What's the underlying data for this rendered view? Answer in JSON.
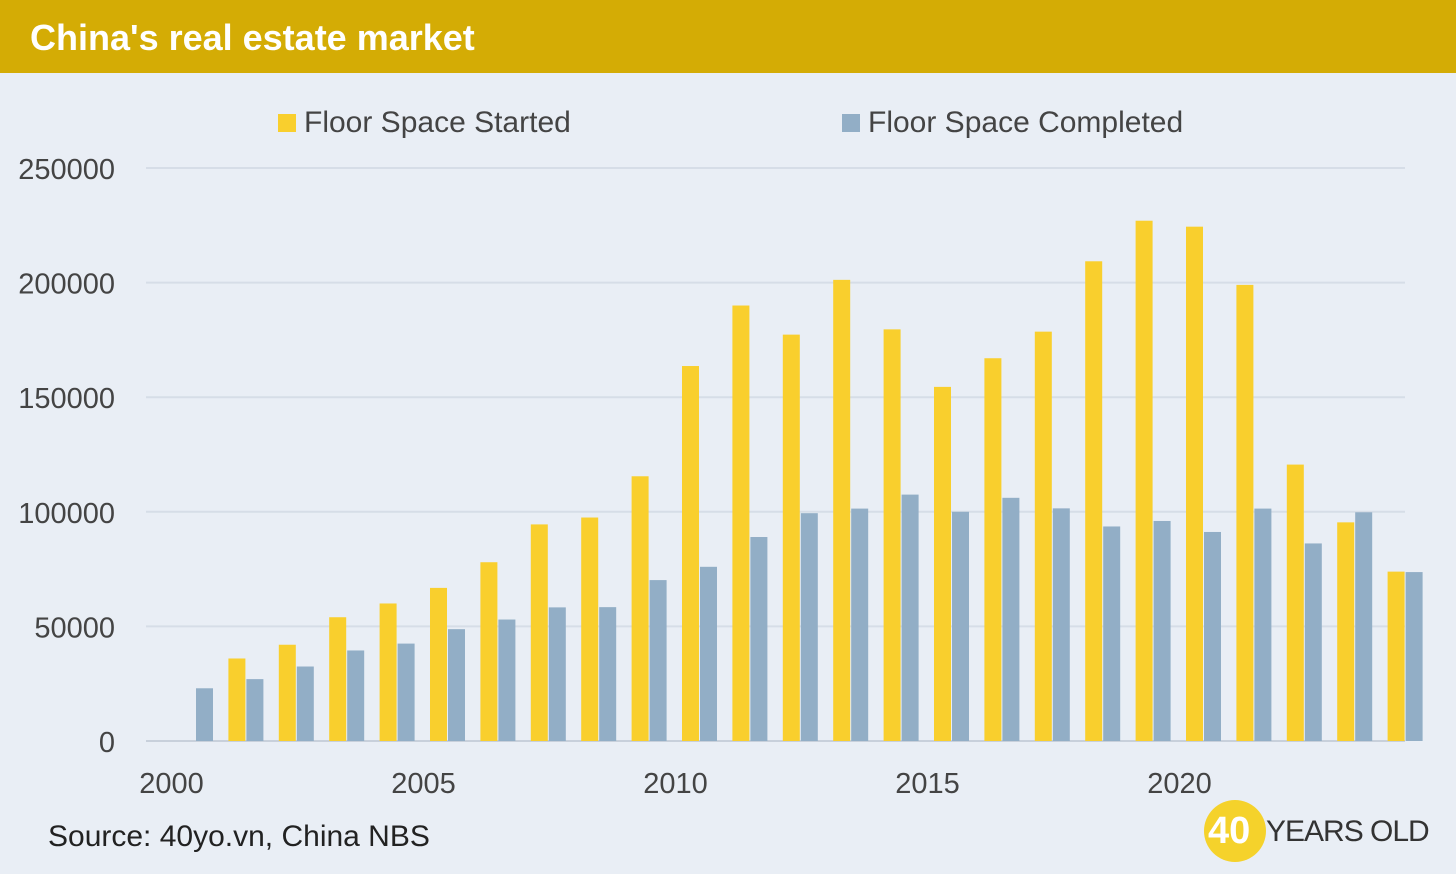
{
  "header": {
    "title": "China's real estate market"
  },
  "source": "Source: 40yo.vn, China NBS",
  "brand": {
    "number": "40",
    "text": "YEARS OLD"
  },
  "colors": {
    "header_bg": "#d4ac05",
    "background": "#e9eef5",
    "started": "#f9cf2d",
    "completed": "#92aec6",
    "gridline": "#d6dde7"
  },
  "chart_data": {
    "type": "bar",
    "title": "China's real estate market",
    "xlabel": "",
    "ylabel": "",
    "ylim": [
      0,
      250000
    ],
    "yticks": [
      "0",
      "50000",
      "100000",
      "150000",
      "200000",
      "250000"
    ],
    "xtick_labels": [
      "2000",
      "2005",
      "2010",
      "2015",
      "2020"
    ],
    "legend_position": "top",
    "grid": true,
    "categories": [
      "2000",
      "2001",
      "2002",
      "2003",
      "2004",
      "2005",
      "2006",
      "2007",
      "2008",
      "2009",
      "2010",
      "2011",
      "2012",
      "2013",
      "2014",
      "2015",
      "2016",
      "2017",
      "2018",
      "2019",
      "2020",
      "2021",
      "2022",
      "2023",
      "2024"
    ],
    "series": [
      {
        "name": "Floor Space Started",
        "color": "#f9cf2d",
        "values": [
          null,
          36000,
          42000,
          54000,
          60000,
          66800,
          78000,
          94500,
          97500,
          115500,
          163600,
          190000,
          177300,
          201200,
          179600,
          154500,
          167000,
          178600,
          209300,
          227000,
          224400,
          199000,
          120600,
          95400,
          73900
        ]
      },
      {
        "name": "Floor Space Completed",
        "color": "#92aec6",
        "values": [
          23000,
          27000,
          32500,
          39500,
          42500,
          48800,
          53000,
          58300,
          58400,
          70200,
          76000,
          89000,
          99400,
          101400,
          107500,
          100000,
          106100,
          101500,
          93600,
          96000,
          91200,
          101400,
          86200,
          99800,
          73700
        ]
      }
    ]
  }
}
